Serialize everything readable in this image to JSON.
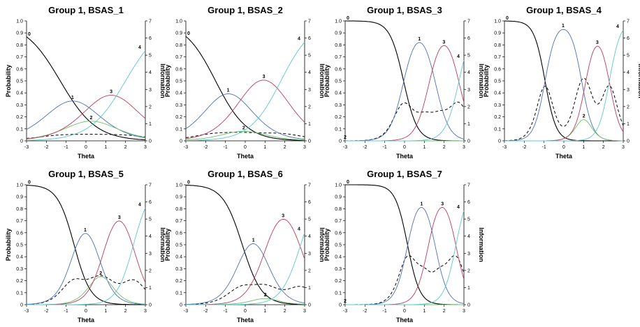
{
  "labels": {
    "xlabel": "Theta",
    "ylabel_left": "Probability",
    "ylabel_right": "Information"
  },
  "colors": {
    "0": "#000000",
    "1": "#4a70b8",
    "2": "#6cc06c",
    "3": "#c0395a",
    "4": "#5cc8c8",
    "info": "#000000"
  },
  "axes": {
    "xlim": [
      -3,
      3
    ],
    "xticks": [
      -3,
      -2,
      -1,
      0,
      1,
      2,
      3
    ],
    "ylim": [
      0,
      1.0
    ],
    "yticks": [
      0,
      0.1,
      0.2,
      0.3,
      0.4,
      0.5,
      0.6,
      0.7,
      0.8,
      0.9,
      1.0
    ],
    "info_lim": [
      0,
      7
    ],
    "info_ticks": [
      0,
      1,
      2,
      3,
      4,
      5,
      6,
      7
    ]
  },
  "chart_data": [
    {
      "type": "line",
      "title": "Group 1, BSAS_1",
      "discrimination": 0.65,
      "thresholds": [
        -1.3,
        -0.05,
        0.55,
        2.0
      ]
    },
    {
      "type": "line",
      "title": "Group 1, BSAS_2",
      "discrimination": 0.75,
      "thresholds": [
        -1.5,
        -0.2,
        0.05,
        1.8
      ]
    },
    {
      "type": "line",
      "title": "Group 1, BSAS_3",
      "discrimination": 1.7,
      "thresholds": [
        -0.05,
        1.55,
        1.25,
        2.75
      ]
    },
    {
      "type": "line",
      "title": "Group 1, BSAS_4",
      "discrimination": 2.1,
      "thresholds": [
        -0.95,
        0.9,
        1.1,
        2.3
      ]
    },
    {
      "type": "line",
      "title": "Group 1, BSAS_5",
      "discrimination": 1.4,
      "thresholds": [
        -0.6,
        0.55,
        0.95,
        2.4
      ]
    },
    {
      "type": "line",
      "title": "Group 1, BSAS_6",
      "discrimination": 1.2,
      "thresholds": [
        -0.15,
        0.95,
        1.05,
        2.8
      ]
    },
    {
      "type": "line",
      "title": "Group 1, BSAS_7",
      "discrimination": 1.9,
      "thresholds": [
        0.15,
        1.55,
        1.2,
        2.6
      ]
    }
  ]
}
